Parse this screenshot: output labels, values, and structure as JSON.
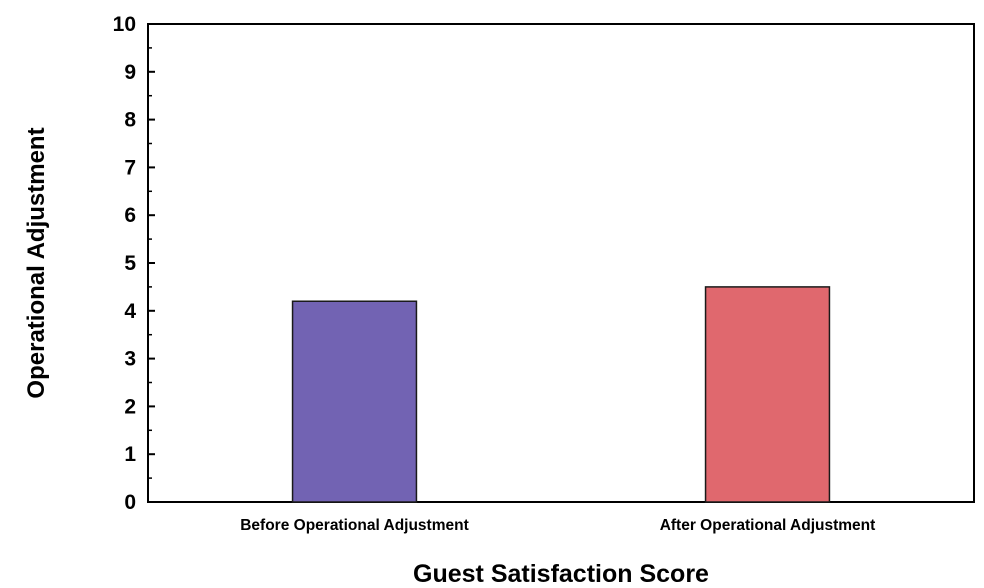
{
  "chart_data": {
    "type": "bar",
    "categories": [
      "Before Operational Adjustment",
      "After Operational Adjustment"
    ],
    "values": [
      4.2,
      4.5
    ],
    "colors": [
      "#7263b3",
      "#e0686e"
    ],
    "xlabel": "Guest Satisfaction Score",
    "ylabel": "Operational Adjustment",
    "ylim": [
      0,
      10
    ],
    "yticks": [
      "0",
      "1",
      "2",
      "3",
      "4",
      "5",
      "6",
      "7",
      "8",
      "9",
      "10"
    ],
    "grid": false,
    "legend": "none"
  }
}
